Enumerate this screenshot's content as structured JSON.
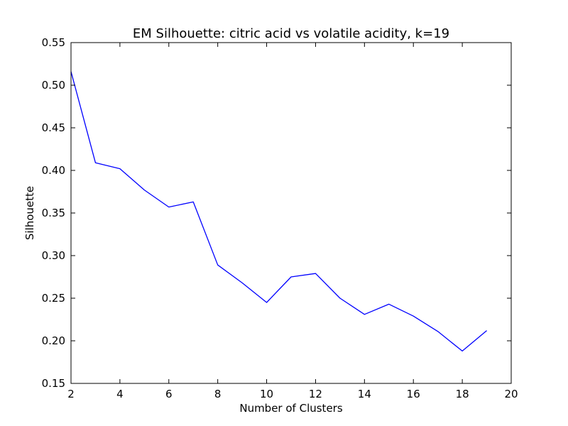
{
  "chart_data": {
    "type": "line",
    "title": "EM Silhouette: citric acid vs volatile acidity, k=19",
    "xlabel": "Number of Clusters",
    "ylabel": "Silhouette",
    "xlim": [
      2,
      20
    ],
    "ylim": [
      0.15,
      0.55
    ],
    "xticks": [
      2,
      4,
      6,
      8,
      10,
      12,
      14,
      16,
      18,
      20
    ],
    "yticks": [
      0.15,
      0.2,
      0.25,
      0.3,
      0.35,
      0.4,
      0.45,
      0.5,
      0.55
    ],
    "xtick_labels": [
      "2",
      "4",
      "6",
      "8",
      "10",
      "12",
      "14",
      "16",
      "18",
      "20"
    ],
    "ytick_labels": [
      "0.15",
      "0.20",
      "0.25",
      "0.30",
      "0.35",
      "0.40",
      "0.45",
      "0.50",
      "0.55"
    ],
    "grid": false,
    "series": [
      {
        "color": "#0000ff",
        "x": [
          2,
          3,
          4,
          5,
          6,
          7,
          8,
          9,
          10,
          11,
          12,
          13,
          14,
          15,
          16,
          17,
          18,
          19
        ],
        "y": [
          0.516,
          0.409,
          0.402,
          0.377,
          0.357,
          0.363,
          0.289,
          0.268,
          0.245,
          0.275,
          0.279,
          0.25,
          0.231,
          0.243,
          0.229,
          0.211,
          0.188,
          0.212
        ]
      }
    ]
  }
}
